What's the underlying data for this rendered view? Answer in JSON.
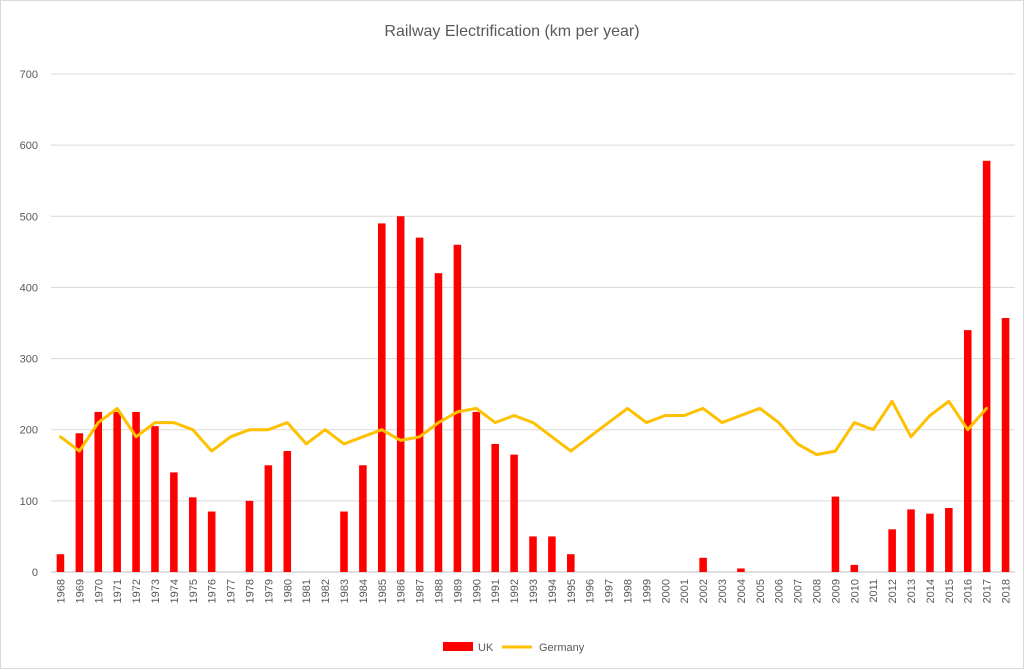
{
  "chart_data": {
    "type": "bar",
    "title": "Railway Electrification (km per year)",
    "xlabel": "",
    "ylabel": "",
    "ylim": [
      0,
      700
    ],
    "yticks": [
      0,
      100,
      200,
      300,
      400,
      500,
      600,
      700
    ],
    "grid": true,
    "legend_position": "bottom",
    "categories": [
      "1968",
      "1969",
      "1970",
      "1971",
      "1972",
      "1973",
      "1974",
      "1975",
      "1976",
      "1977",
      "1978",
      "1979",
      "1980",
      "1981",
      "1982",
      "1983",
      "1984",
      "1985",
      "1986",
      "1987",
      "1988",
      "1989",
      "1990",
      "1991",
      "1992",
      "1993",
      "1994",
      "1995",
      "1996",
      "1997",
      "1998",
      "1999",
      "2000",
      "2001",
      "2002",
      "2003",
      "2004",
      "2005",
      "2006",
      "2007",
      "2008",
      "2009",
      "2010",
      "2011",
      "2012",
      "2013",
      "2014",
      "2015",
      "2016",
      "2017",
      "2018"
    ],
    "series": [
      {
        "name": "UK",
        "type": "bar",
        "color": "#ff0000",
        "values": [
          25,
          195,
          225,
          225,
          225,
          205,
          140,
          105,
          85,
          0,
          100,
          150,
          170,
          0,
          0,
          85,
          150,
          490,
          500,
          470,
          420,
          460,
          225,
          180,
          165,
          50,
          50,
          25,
          0,
          0,
          0,
          0,
          0,
          0,
          20,
          0,
          5,
          0,
          0,
          0,
          0,
          106,
          10,
          0,
          60,
          88,
          82,
          90,
          340,
          578,
          357
        ]
      },
      {
        "name": "Germany",
        "type": "line",
        "color": "#ffc000",
        "values": [
          190,
          170,
          210,
          230,
          190,
          210,
          210,
          200,
          170,
          190,
          200,
          200,
          210,
          180,
          200,
          180,
          190,
          200,
          185,
          190,
          210,
          225,
          230,
          210,
          220,
          210,
          190,
          170,
          190,
          210,
          230,
          210,
          220,
          220,
          230,
          210,
          220,
          230,
          210,
          180,
          165,
          170,
          210,
          200,
          240,
          190,
          220,
          240,
          200,
          230,
          null
        ]
      }
    ]
  }
}
